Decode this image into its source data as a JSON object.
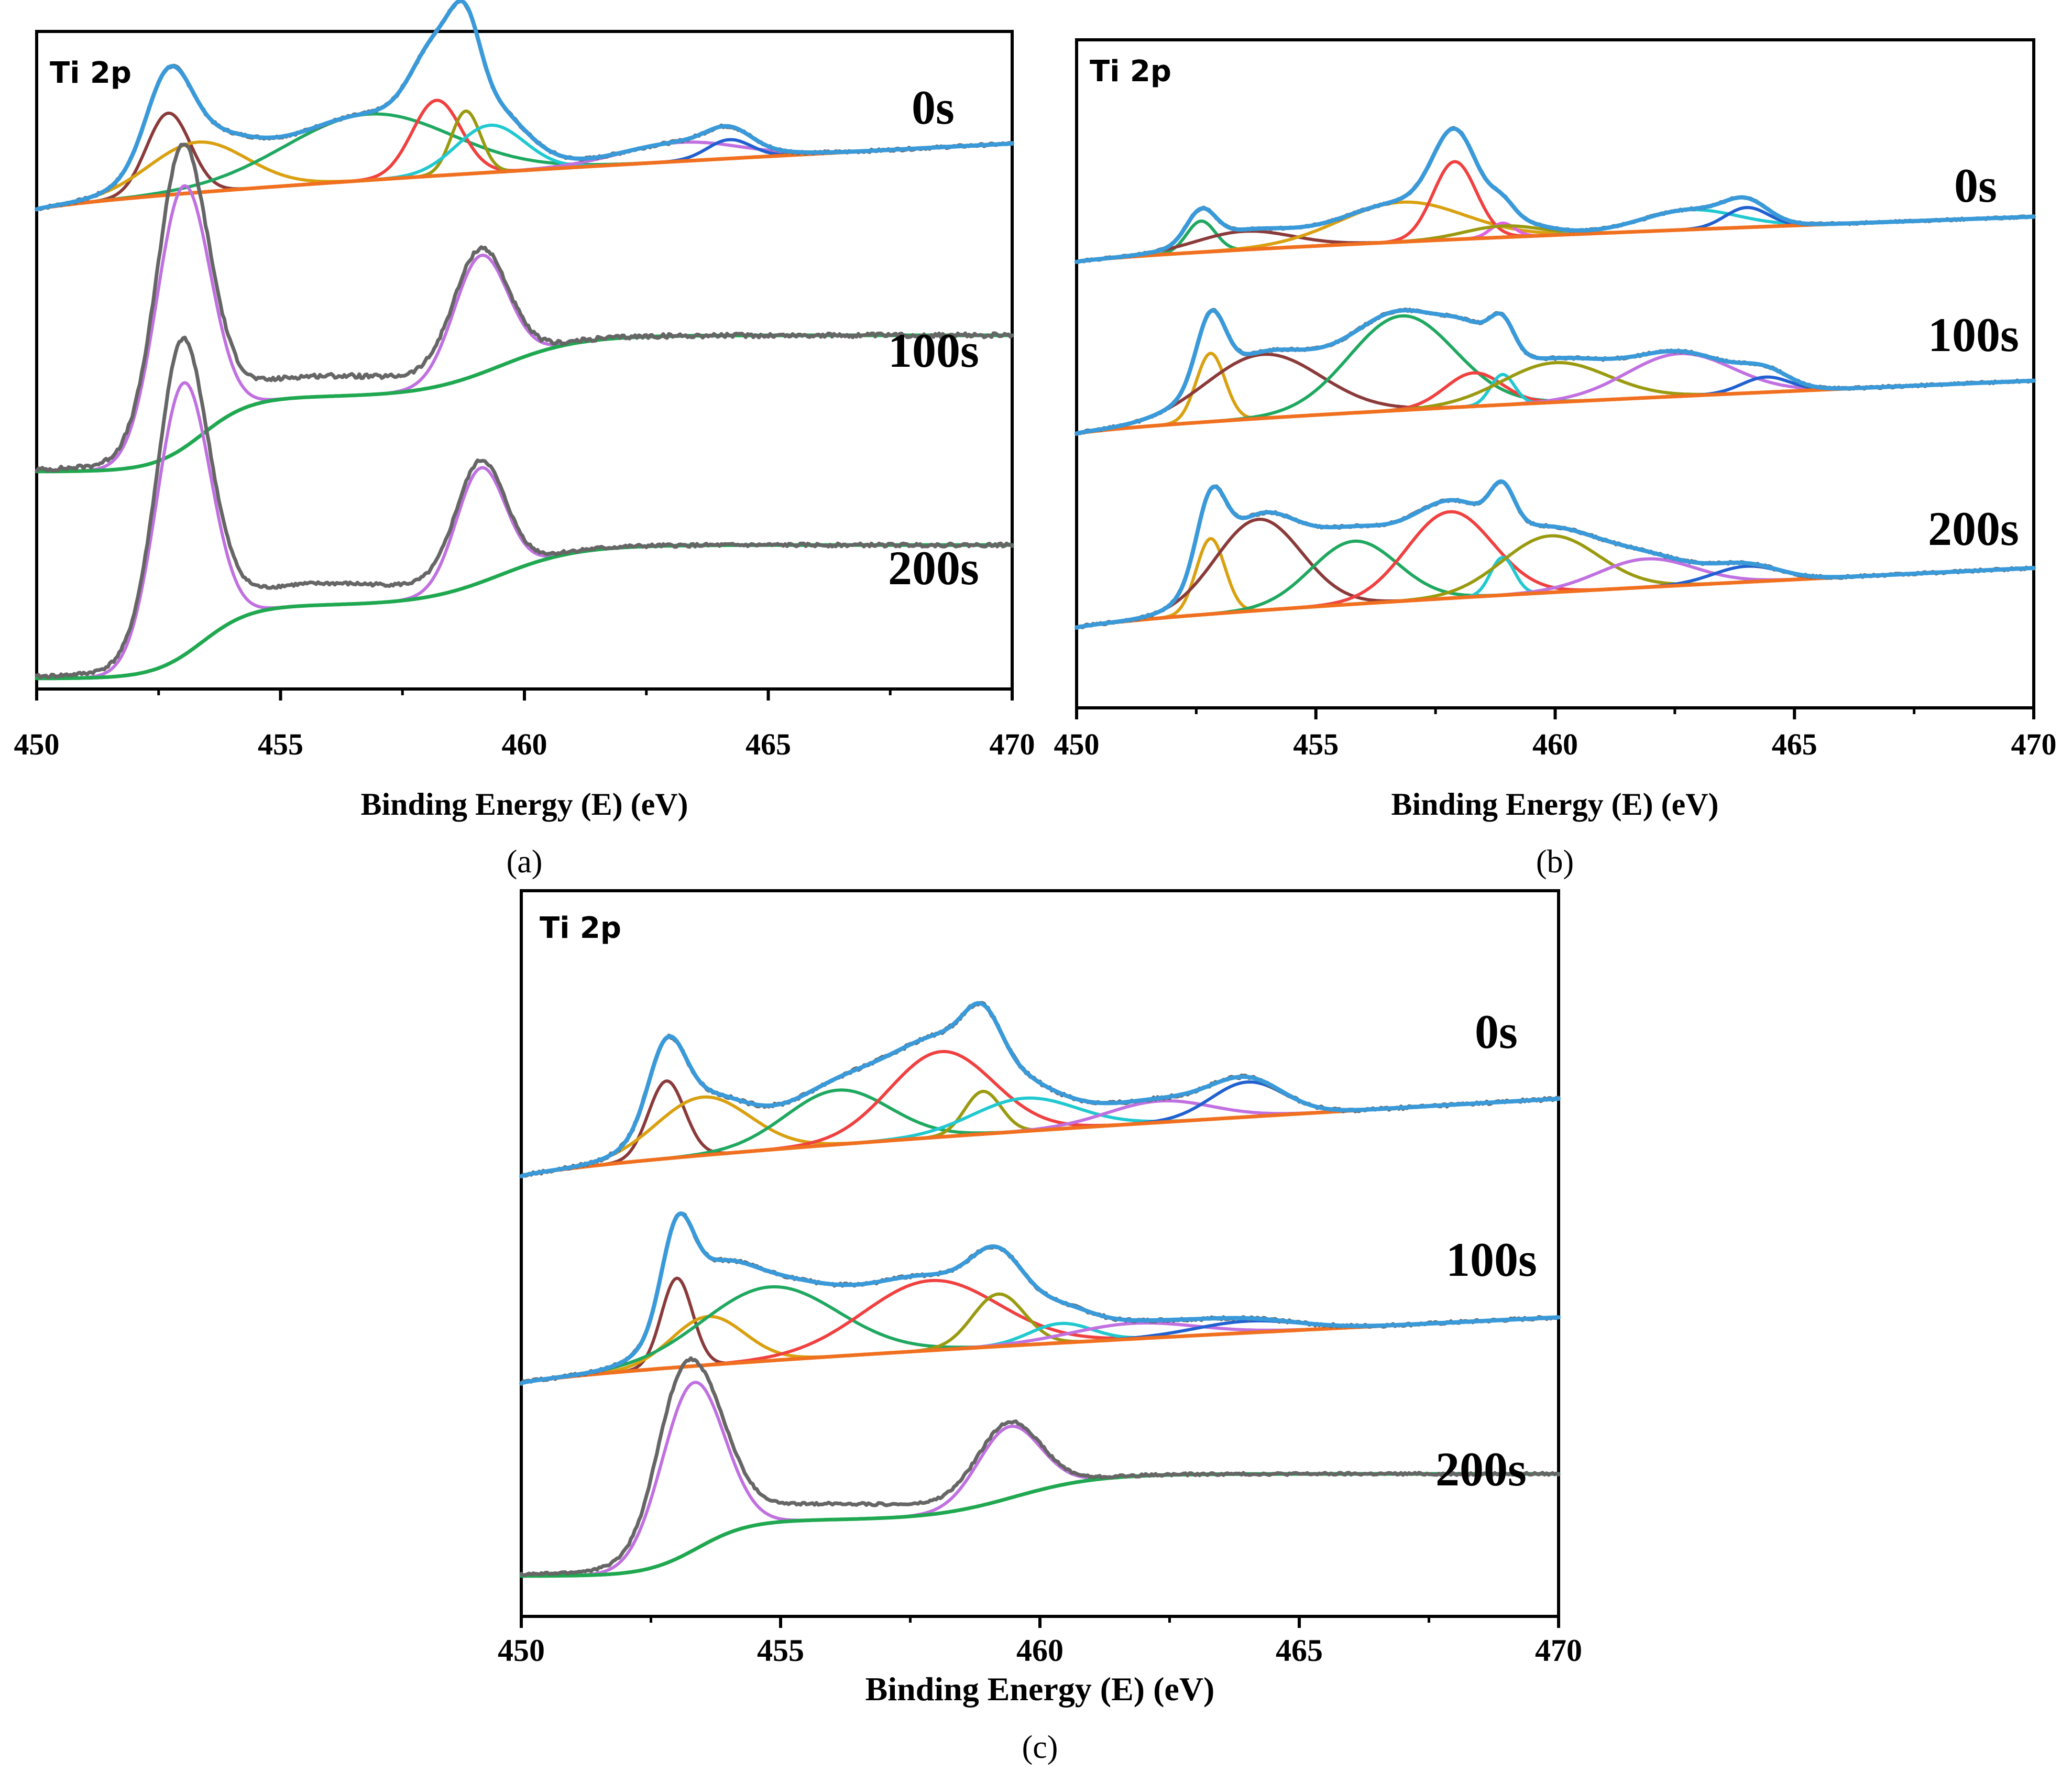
{
  "figure": {
    "panels": [
      {
        "id": "a",
        "caption": "(a)",
        "panel_label": "Ti 2p"
      },
      {
        "id": "b",
        "caption": "(b)",
        "panel_label": "Ti 2p"
      },
      {
        "id": "c",
        "caption": "(c)",
        "panel_label": "Ti 2p"
      }
    ]
  },
  "colors": {
    "experimental": "#666666",
    "envelope": "#3a9ad9",
    "background": "#f07020",
    "shirley_bg": "#1fa850",
    "brown": "#8b3a3a",
    "gold": "#d9a010",
    "green": "#1fa860",
    "red": "#f04040",
    "olive": "#9a9a10",
    "cyan": "#20c8d0",
    "violet": "#c070e0",
    "blue": "#2060d0",
    "magenta": "#e060e0"
  },
  "chart_data": [
    {
      "type": "line",
      "panel": "a",
      "title": "Ti 2p",
      "xlabel": "Binding Energy (E) (eV)",
      "ylabel": "",
      "xlim": [
        450,
        470
      ],
      "xticks": [
        "450",
        "455",
        "460",
        "465",
        "470"
      ],
      "grid": false,
      "spectra": [
        {
          "label": "0s",
          "bg": [
            0,
            0.42
          ],
          "data_amp": 0.52,
          "data_noise": 0.008,
          "components": [
            {
              "name": "brown",
              "color": "brown",
              "center": 452.7,
              "width": 0.45,
              "amp": 0.52
            },
            {
              "name": "gold",
              "color": "gold",
              "center": 453.3,
              "width": 1.0,
              "amp": 0.32
            },
            {
              "name": "green",
              "color": "green",
              "center": 456.8,
              "width": 1.7,
              "amp": 0.42
            },
            {
              "name": "red",
              "color": "red",
              "center": 458.2,
              "width": 0.5,
              "amp": 0.48
            },
            {
              "name": "olive",
              "color": "olive",
              "center": 458.8,
              "width": 0.3,
              "amp": 0.4
            },
            {
              "name": "cyan",
              "color": "cyan",
              "center": 459.3,
              "width": 0.7,
              "amp": 0.3
            },
            {
              "name": "violet",
              "color": "violet",
              "center": 463.2,
              "width": 1.2,
              "amp": 0.12
            },
            {
              "name": "blue",
              "color": "blue",
              "center": 464.2,
              "width": 0.45,
              "amp": 0.12
            }
          ]
        },
        {
          "label": "100s",
          "bg": [
            0,
            0.52
          ],
          "shirley": true,
          "data_amp": 1.0,
          "data_noise": 0.008,
          "components": [
            {
              "name": "violet-1",
              "color": "violet",
              "center": 453.0,
              "width": 0.55,
              "amp": 1.0
            },
            {
              "name": "violet-2",
              "color": "violet",
              "center": 459.1,
              "width": 0.55,
              "amp": 0.45
            }
          ]
        },
        {
          "label": "200s",
          "bg": [
            0,
            0.49
          ],
          "shirley": true,
          "data_amp": 1.0,
          "data_noise": 0.006,
          "components": [
            {
              "name": "violet-1",
              "color": "violet",
              "center": 453.0,
              "width": 0.55,
              "amp": 1.0
            },
            {
              "name": "violet-2",
              "color": "violet",
              "center": 459.1,
              "width": 0.5,
              "amp": 0.42
            }
          ]
        }
      ],
      "stage_labels": [
        "0s",
        "100s",
        "200s"
      ]
    },
    {
      "type": "line",
      "panel": "b",
      "title": "Ti 2p",
      "xlabel": "Binding Energy (E) (eV)",
      "ylabel": "",
      "xlim": [
        450,
        470
      ],
      "xticks": [
        "450",
        "455",
        "460",
        "465",
        "470"
      ],
      "grid": false,
      "spectra": [
        {
          "label": "0s",
          "bg": [
            0,
            0.32
          ],
          "data_amp": 0.42,
          "data_noise": 0.006,
          "components": [
            {
              "name": "green",
              "color": "green",
              "center": 452.6,
              "width": 0.3,
              "amp": 0.22
            },
            {
              "name": "brown",
              "color": "brown",
              "center": 453.5,
              "width": 1.0,
              "amp": 0.13
            },
            {
              "name": "gold",
              "color": "gold",
              "center": 456.8,
              "width": 1.3,
              "amp": 0.28
            },
            {
              "name": "red",
              "color": "red",
              "center": 457.9,
              "width": 0.45,
              "amp": 0.55
            },
            {
              "name": "magenta",
              "color": "magenta",
              "center": 458.9,
              "width": 0.25,
              "amp": 0.1
            },
            {
              "name": "olive",
              "color": "olive",
              "center": 458.9,
              "width": 0.8,
              "amp": 0.08
            },
            {
              "name": "cyan",
              "color": "cyan",
              "center": 462.8,
              "width": 1.0,
              "amp": 0.14
            },
            {
              "name": "blue",
              "color": "blue",
              "center": 464.0,
              "width": 0.45,
              "amp": 0.14
            }
          ]
        },
        {
          "label": "100s",
          "bg": [
            0,
            0.35
          ],
          "data_amp": 0.62,
          "data_noise": 0.007,
          "components": [
            {
              "name": "gold",
              "color": "gold",
              "center": 452.8,
              "width": 0.3,
              "amp": 0.45
            },
            {
              "name": "brown",
              "color": "brown",
              "center": 453.9,
              "width": 1.2,
              "amp": 0.42
            },
            {
              "name": "green",
              "color": "green",
              "center": 456.8,
              "width": 1.1,
              "amp": 0.62
            },
            {
              "name": "red",
              "color": "red",
              "center": 458.3,
              "width": 0.6,
              "amp": 0.22
            },
            {
              "name": "cyan",
              "color": "cyan",
              "center": 458.9,
              "width": 0.25,
              "amp": 0.2
            },
            {
              "name": "olive",
              "color": "olive",
              "center": 460.0,
              "width": 1.1,
              "amp": 0.26
            },
            {
              "name": "violet",
              "color": "violet",
              "center": 462.6,
              "width": 1.1,
              "amp": 0.28
            },
            {
              "name": "blue",
              "color": "blue",
              "center": 464.4,
              "width": 0.5,
              "amp": 0.1
            }
          ]
        },
        {
          "label": "200s",
          "bg": [
            0,
            0.38
          ],
          "data_amp": 0.55,
          "data_noise": 0.007,
          "components": [
            {
              "name": "gold",
              "color": "gold",
              "center": 452.8,
              "width": 0.3,
              "amp": 0.48
            },
            {
              "name": "brown",
              "color": "brown",
              "center": 453.8,
              "width": 0.9,
              "amp": 0.58
            },
            {
              "name": "green",
              "color": "green",
              "center": 455.8,
              "width": 0.9,
              "amp": 0.4
            },
            {
              "name": "red",
              "color": "red",
              "center": 457.8,
              "width": 0.9,
              "amp": 0.55
            },
            {
              "name": "cyan",
              "color": "cyan",
              "center": 458.9,
              "width": 0.25,
              "amp": 0.24
            },
            {
              "name": "olive",
              "color": "olive",
              "center": 459.9,
              "width": 1.0,
              "amp": 0.36
            },
            {
              "name": "violet",
              "color": "violet",
              "center": 461.9,
              "width": 1.0,
              "amp": 0.18
            },
            {
              "name": "blue",
              "color": "blue",
              "center": 464.0,
              "width": 0.7,
              "amp": 0.1
            }
          ]
        }
      ],
      "stage_labels": [
        "0s",
        "100s",
        "200s"
      ]
    },
    {
      "type": "line",
      "panel": "c",
      "title": "Ti 2p",
      "xlabel": "Binding Energy (E) (eV)",
      "ylabel": "",
      "xlim": [
        450,
        470
      ],
      "xticks": [
        "450",
        "455",
        "460",
        "465",
        "470"
      ],
      "grid": false,
      "spectra": [
        {
          "label": "0s",
          "bg": [
            0,
            0.4
          ],
          "data_amp": 0.5,
          "data_noise": 0.008,
          "components": [
            {
              "name": "brown",
              "color": "brown",
              "center": 452.8,
              "width": 0.35,
              "amp": 0.4
            },
            {
              "name": "gold",
              "color": "gold",
              "center": 453.5,
              "width": 0.9,
              "amp": 0.3
            },
            {
              "name": "green",
              "color": "green",
              "center": 456.1,
              "width": 1.0,
              "amp": 0.28
            },
            {
              "name": "red",
              "color": "red",
              "center": 458.1,
              "width": 1.0,
              "amp": 0.44
            },
            {
              "name": "olive",
              "color": "olive",
              "center": 458.9,
              "width": 0.35,
              "amp": 0.22
            },
            {
              "name": "cyan",
              "color": "cyan",
              "center": 459.7,
              "width": 1.0,
              "amp": 0.17
            },
            {
              "name": "violet",
              "color": "violet",
              "center": 462.3,
              "width": 1.0,
              "amp": 0.11
            },
            {
              "name": "blue",
              "color": "blue",
              "center": 464.0,
              "width": 0.7,
              "amp": 0.18
            }
          ]
        },
        {
          "label": "100s",
          "bg": [
            0,
            0.34
          ],
          "data_amp": 0.47,
          "data_noise": 0.007,
          "components": [
            {
              "name": "brown",
              "color": "brown",
              "center": 453.0,
              "width": 0.3,
              "amp": 0.46
            },
            {
              "name": "gold",
              "color": "gold",
              "center": 453.6,
              "width": 0.7,
              "amp": 0.25
            },
            {
              "name": "green",
              "color": "green",
              "center": 454.8,
              "width": 1.3,
              "amp": 0.38
            },
            {
              "name": "red",
              "color": "red",
              "center": 457.9,
              "width": 1.3,
              "amp": 0.36
            },
            {
              "name": "olive",
              "color": "olive",
              "center": 459.2,
              "width": 0.5,
              "amp": 0.27
            },
            {
              "name": "cyan",
              "color": "cyan",
              "center": 460.4,
              "width": 0.6,
              "amp": 0.1
            },
            {
              "name": "violet",
              "color": "violet",
              "center": 461.8,
              "width": 1.2,
              "amp": 0.08
            },
            {
              "name": "blue",
              "color": "blue",
              "center": 464.0,
              "width": 1.0,
              "amp": 0.06
            }
          ]
        },
        {
          "label": "200s",
          "bg": [
            0,
            0.5
          ],
          "shirley": true,
          "data_amp": 0.82,
          "data_noise": 0.006,
          "components": [
            {
              "name": "violet-1",
              "color": "violet",
              "center": 453.3,
              "width": 0.6,
              "amp": 0.82
            },
            {
              "name": "violet-2",
              "color": "violet",
              "center": 459.4,
              "width": 0.6,
              "amp": 0.35
            }
          ]
        }
      ],
      "stage_labels": [
        "0s",
        "100s",
        "200s"
      ]
    }
  ]
}
